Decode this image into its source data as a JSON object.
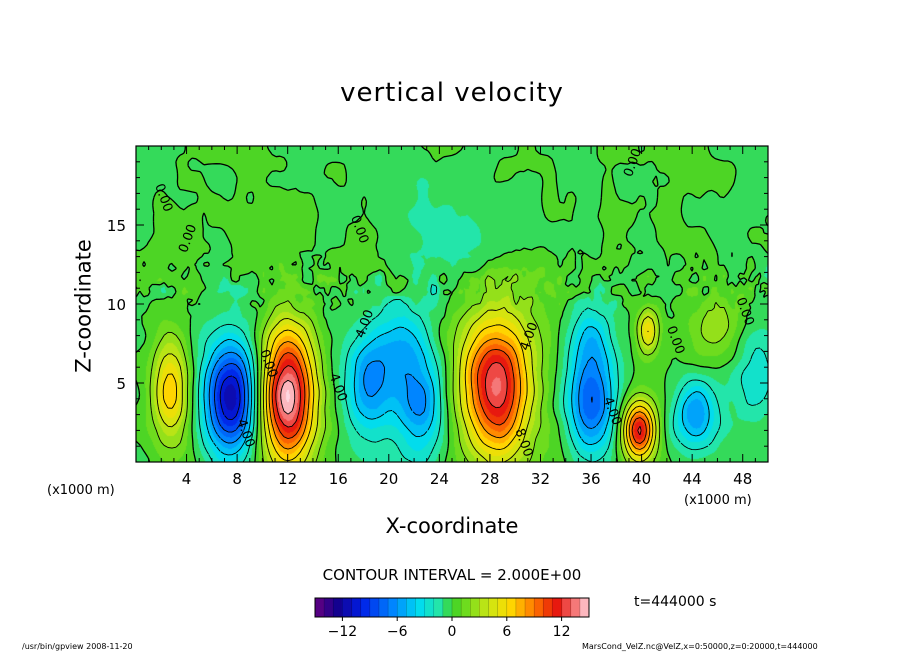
{
  "chart_data": {
    "type": "contour",
    "title": "vertical velocity",
    "xlabel": "X-coordinate",
    "ylabel": "Z-coordinate",
    "x_unit_label": "(x1000 m)",
    "y_unit_label": "(x1000 m)",
    "xlim": [
      0,
      50
    ],
    "ylim": [
      0,
      20
    ],
    "x_ticks": [
      4,
      8,
      12,
      16,
      20,
      24,
      28,
      32,
      36,
      40,
      44,
      48
    ],
    "y_ticks": [
      5,
      10,
      15
    ],
    "contour_interval_text": "CONTOUR INTERVAL = 2.000E+00",
    "time_text": "t=444000 s",
    "colorbar": {
      "min": -15,
      "max": 15,
      "ticks": [
        -12,
        -6,
        0,
        6,
        12
      ]
    },
    "contour_labels": [
      {
        "text": "0.00",
        "x": 1.5,
        "z": 17.5
      },
      {
        "text": "0.00",
        "x": 4.0,
        "z": 13.2
      },
      {
        "text": "0.00",
        "x": 9.8,
        "z": 7.0
      },
      {
        "text": "0.00",
        "x": 17.0,
        "z": 15.5
      },
      {
        "text": "4.00",
        "x": 18.0,
        "z": 7.8
      },
      {
        "text": "4.00",
        "x": 15.3,
        "z": 5.5
      },
      {
        "text": "4.00",
        "x": 8.0,
        "z": 2.6
      },
      {
        "text": "4.00",
        "x": 31.0,
        "z": 7.0
      },
      {
        "text": "8.00",
        "x": 30.0,
        "z": 2.0
      },
      {
        "text": "4.00",
        "x": 37.0,
        "z": 4.0
      },
      {
        "text": "0.00",
        "x": 39.2,
        "z": 18.0
      },
      {
        "text": "0.00",
        "x": 42.0,
        "z": 8.5
      },
      {
        "text": "0.00",
        "x": 47.5,
        "z": 10.3
      }
    ],
    "features": [
      {
        "x": 2.7,
        "z": 4.5,
        "sx": 1.0,
        "sz": 2.4,
        "amp": 7
      },
      {
        "x": 7.5,
        "z": 4.0,
        "sx": 1.5,
        "sz": 2.5,
        "amp": -12
      },
      {
        "x": 12.0,
        "z": 4.2,
        "sx": 1.5,
        "sz": 3.0,
        "amp": 15
      },
      {
        "x": 18.5,
        "z": 4.8,
        "sx": 1.4,
        "sz": 2.4,
        "amp": -6
      },
      {
        "x": 22.5,
        "z": 3.5,
        "sx": 1.5,
        "sz": 2.3,
        "amp": -6
      },
      {
        "x": 21.0,
        "z": 7.5,
        "sx": 1.5,
        "sz": 1.8,
        "amp": -4
      },
      {
        "x": 28.5,
        "z": 4.8,
        "sx": 2.0,
        "sz": 3.2,
        "amp": 13
      },
      {
        "x": 36.0,
        "z": 4.0,
        "sx": 1.3,
        "sz": 2.4,
        "amp": -8
      },
      {
        "x": 36.0,
        "z": 8.0,
        "sx": 1.2,
        "sz": 1.3,
        "amp": -3
      },
      {
        "x": 39.8,
        "z": 2.0,
        "sx": 0.9,
        "sz": 1.3,
        "amp": 12
      },
      {
        "x": 40.5,
        "z": 8.3,
        "sx": 0.6,
        "sz": 1.0,
        "amp": 6
      },
      {
        "x": 44.3,
        "z": 3.0,
        "sx": 1.2,
        "sz": 1.6,
        "amp": -6
      },
      {
        "x": 46.0,
        "z": 8.5,
        "sx": 1.6,
        "sz": 1.5,
        "amp": 3
      },
      {
        "x": 49.0,
        "z": 5.5,
        "sx": 1.5,
        "sz": 2.0,
        "amp": -3
      },
      {
        "x": 24.5,
        "z": 14.5,
        "sx": 3.0,
        "sz": 2.5,
        "amp": -1.5
      }
    ]
  },
  "footer": {
    "left": "/usr/bin/gpview   2008-11-20",
    "right": "MarsCond_VelZ.nc@VelZ,x=0:50000,z=0:20000,t=444000"
  }
}
